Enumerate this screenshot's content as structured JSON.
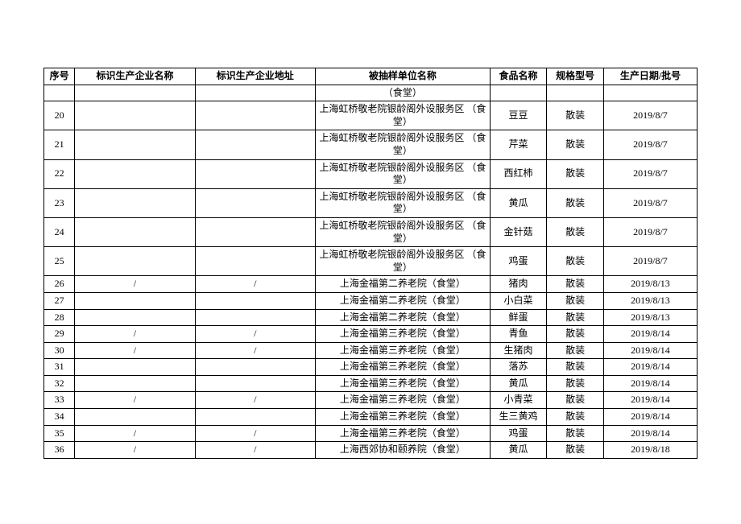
{
  "table": {
    "font_size_pt": 9,
    "header_font_size_pt": 9,
    "border_color": "#000000",
    "background_color": "#ffffff",
    "columns": [
      {
        "key": "seq",
        "label": "序号"
      },
      {
        "key": "ent",
        "label": "标识生产企业名称"
      },
      {
        "key": "addr",
        "label": "标识生产企业地址"
      },
      {
        "key": "sampled",
        "label": "被抽样单位名称"
      },
      {
        "key": "food",
        "label": "食品名称"
      },
      {
        "key": "spec",
        "label": "规格型号"
      },
      {
        "key": "date",
        "label": "生产日期/批号"
      }
    ],
    "continuation_row": {
      "seq": "",
      "ent": "",
      "addr": "",
      "sampled": "（食堂）",
      "food": "",
      "spec": "",
      "date": "",
      "tall": false
    },
    "rows": [
      {
        "seq": "20",
        "ent": "",
        "addr": "",
        "sampled": "上海虹桥敬老院银龄阁外设服务区 （食堂）",
        "food": "豆豆",
        "spec": "散装",
        "date": "2019/8/7",
        "tall": true
      },
      {
        "seq": "21",
        "ent": "",
        "addr": "",
        "sampled": "上海虹桥敬老院银龄阁外设服务区 （食堂）",
        "food": "芹菜",
        "spec": "散装",
        "date": "2019/8/7",
        "tall": true
      },
      {
        "seq": "22",
        "ent": "",
        "addr": "",
        "sampled": "上海虹桥敬老院银龄阁外设服务区 （食堂）",
        "food": "西红柿",
        "spec": "散装",
        "date": "2019/8/7",
        "tall": true
      },
      {
        "seq": "23",
        "ent": "",
        "addr": "",
        "sampled": "上海虹桥敬老院银龄阁外设服务区 （食堂）",
        "food": "黄瓜",
        "spec": "散装",
        "date": "2019/8/7",
        "tall": true
      },
      {
        "seq": "24",
        "ent": "",
        "addr": "",
        "sampled": "上海虹桥敬老院银龄阁外设服务区 （食堂）",
        "food": "金针菇",
        "spec": "散装",
        "date": "2019/8/7",
        "tall": true
      },
      {
        "seq": "25",
        "ent": "",
        "addr": "",
        "sampled": "上海虹桥敬老院银龄阁外设服务区 （食堂）",
        "food": "鸡蛋",
        "spec": "散装",
        "date": "2019/8/7",
        "tall": true
      },
      {
        "seq": "26",
        "ent": "/",
        "addr": "/",
        "sampled": "上海金福第二养老院（食堂）",
        "food": "猪肉",
        "spec": "散装",
        "date": "2019/8/13",
        "tall": false
      },
      {
        "seq": "27",
        "ent": "",
        "addr": "",
        "sampled": "上海金福第二养老院（食堂）",
        "food": "小白菜",
        "spec": "散装",
        "date": "2019/8/13",
        "tall": false
      },
      {
        "seq": "28",
        "ent": "",
        "addr": "",
        "sampled": "上海金福第二养老院（食堂）",
        "food": "鲜蛋",
        "spec": "散装",
        "date": "2019/8/13",
        "tall": false
      },
      {
        "seq": "29",
        "ent": "/",
        "addr": "/",
        "sampled": "上海金福第三养老院（食堂）",
        "food": "青鱼",
        "spec": "散装",
        "date": "2019/8/14",
        "tall": false
      },
      {
        "seq": "30",
        "ent": "/",
        "addr": "/",
        "sampled": "上海金福第三养老院（食堂）",
        "food": "生猪肉",
        "spec": "散装",
        "date": "2019/8/14",
        "tall": false
      },
      {
        "seq": "31",
        "ent": "",
        "addr": "",
        "sampled": "上海金福第三养老院（食堂）",
        "food": "落苏",
        "spec": "散装",
        "date": "2019/8/14",
        "tall": false
      },
      {
        "seq": "32",
        "ent": "",
        "addr": "",
        "sampled": "上海金福第三养老院（食堂）",
        "food": "黄瓜",
        "spec": "散装",
        "date": "2019/8/14",
        "tall": false
      },
      {
        "seq": "33",
        "ent": "/",
        "addr": "/",
        "sampled": "上海金福第三养老院（食堂）",
        "food": "小青菜",
        "spec": "散装",
        "date": "2019/8/14",
        "tall": false
      },
      {
        "seq": "34",
        "ent": "",
        "addr": "",
        "sampled": "上海金福第三养老院（食堂）",
        "food": "生三黄鸡",
        "spec": "散装",
        "date": "2019/8/14",
        "tall": false
      },
      {
        "seq": "35",
        "ent": "/",
        "addr": "/",
        "sampled": "上海金福第三养老院（食堂）",
        "food": "鸡蛋",
        "spec": "散装",
        "date": "2019/8/14",
        "tall": false
      },
      {
        "seq": "36",
        "ent": "/",
        "addr": "/",
        "sampled": "上海西郊协和颐养院（食堂）",
        "food": "黄瓜",
        "spec": "散装",
        "date": "2019/8/18",
        "tall": false
      }
    ]
  }
}
